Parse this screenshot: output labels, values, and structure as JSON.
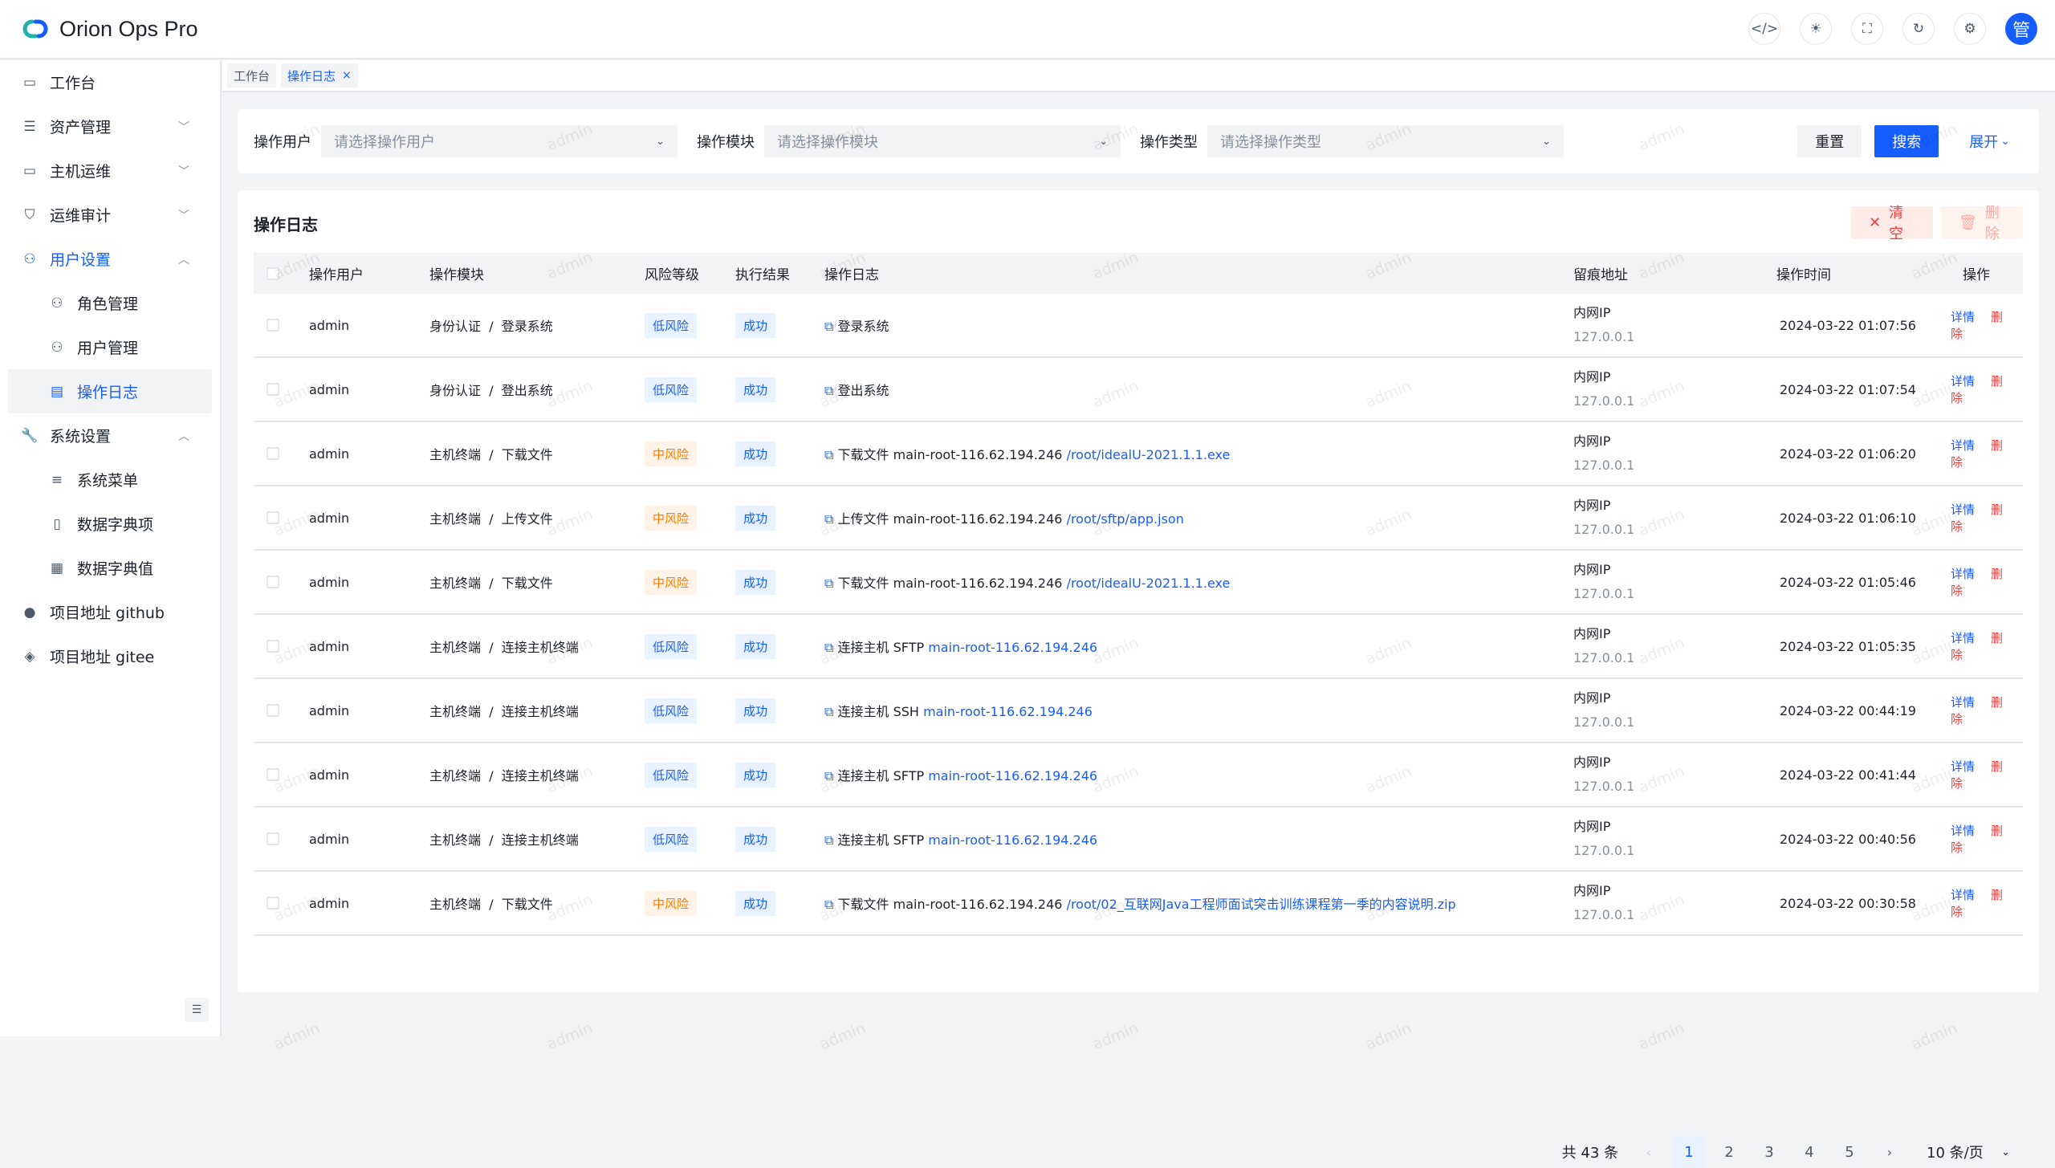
{
  "app": {
    "title": "Orion Ops Pro",
    "avatar_text": "管",
    "brand_color": "#165dff"
  },
  "header": {
    "icons": [
      "code-icon",
      "theme-sun-icon",
      "fullscreen-icon",
      "refresh-icon",
      "settings-gear-icon"
    ]
  },
  "sidebar": {
    "items": [
      {
        "label": "工作台",
        "icon": "monitor-chart-icon",
        "sub": false
      },
      {
        "label": "资产管理",
        "icon": "server-icon",
        "sub": false,
        "chevron": "down"
      },
      {
        "label": "主机运维",
        "icon": "desktop-icon",
        "sub": false,
        "chevron": "down"
      },
      {
        "label": "运维审计",
        "icon": "shield-icon",
        "sub": false,
        "chevron": "down"
      },
      {
        "label": "用户设置",
        "icon": "user-icon",
        "sub": false,
        "chevron": "up",
        "open": true
      },
      {
        "label": "角色管理",
        "icon": "users-icon",
        "sub": true
      },
      {
        "label": "用户管理",
        "icon": "user-add-icon",
        "sub": true
      },
      {
        "label": "操作日志",
        "icon": "log-icon",
        "sub": true,
        "active": true
      },
      {
        "label": "系统设置",
        "icon": "wrench-icon",
        "sub": false,
        "chevron": "up"
      },
      {
        "label": "系统菜单",
        "icon": "menu-icon",
        "sub": true
      },
      {
        "label": "数据字典项",
        "icon": "book-icon",
        "sub": true
      },
      {
        "label": "数据字典值",
        "icon": "table-icon",
        "sub": true
      },
      {
        "label": "项目地址 github",
        "icon": "github-icon",
        "sub": false
      },
      {
        "label": "项目地址 gitee",
        "icon": "gitee-icon",
        "sub": false
      }
    ]
  },
  "tabs": [
    {
      "label": "工作台"
    },
    {
      "label": "操作日志",
      "active": true,
      "close": "×"
    }
  ],
  "search": {
    "fields": [
      {
        "label": "操作用户",
        "placeholder": "请选择操作用户"
      },
      {
        "label": "操作模块",
        "placeholder": "请选择操作模块"
      },
      {
        "label": "操作类型",
        "placeholder": "请选择操作类型"
      }
    ],
    "reset": "重置",
    "search": "搜索",
    "expand": "展开"
  },
  "table": {
    "title": "操作日志",
    "clear": "清空",
    "delete": "删除",
    "columns": [
      "操作用户",
      "操作模块",
      "风险等级",
      "执行结果",
      "操作日志",
      "留痕地址",
      "操作时间",
      "操作"
    ],
    "detail_label": "详情",
    "delete_label": "删除",
    "rows": [
      {
        "user": "admin",
        "module": "身份认证",
        "action": "登录系统",
        "risk": "低风险",
        "risk_level": "low",
        "result": "成功",
        "log": "登录系统",
        "log_link": "",
        "ip_label": "内网IP",
        "ip": "127.0.0.1",
        "time": "2024-03-22 01:07:56"
      },
      {
        "user": "admin",
        "module": "身份认证",
        "action": "登出系统",
        "risk": "低风险",
        "risk_level": "low",
        "result": "成功",
        "log": "登出系统",
        "log_link": "",
        "ip_label": "内网IP",
        "ip": "127.0.0.1",
        "time": "2024-03-22 01:07:54"
      },
      {
        "user": "admin",
        "module": "主机终端",
        "action": "下载文件",
        "risk": "中风险",
        "risk_level": "mid",
        "result": "成功",
        "log": "下载文件 main-root-116.62.194.246",
        "log_link": "/root/idealU-2021.1.1.exe",
        "ip_label": "内网IP",
        "ip": "127.0.0.1",
        "time": "2024-03-22 01:06:20"
      },
      {
        "user": "admin",
        "module": "主机终端",
        "action": "上传文件",
        "risk": "中风险",
        "risk_level": "mid",
        "result": "成功",
        "log": "上传文件 main-root-116.62.194.246",
        "log_link": "/root/sftp/app.json",
        "ip_label": "内网IP",
        "ip": "127.0.0.1",
        "time": "2024-03-22 01:06:10"
      },
      {
        "user": "admin",
        "module": "主机终端",
        "action": "下载文件",
        "risk": "中风险",
        "risk_level": "mid",
        "result": "成功",
        "log": "下载文件 main-root-116.62.194.246",
        "log_link": "/root/idealU-2021.1.1.exe",
        "ip_label": "内网IP",
        "ip": "127.0.0.1",
        "time": "2024-03-22 01:05:46"
      },
      {
        "user": "admin",
        "module": "主机终端",
        "action": "连接主机终端",
        "risk": "低风险",
        "risk_level": "low",
        "result": "成功",
        "log": "连接主机 SFTP",
        "log_link": "main-root-116.62.194.246",
        "ip_label": "内网IP",
        "ip": "127.0.0.1",
        "time": "2024-03-22 01:05:35"
      },
      {
        "user": "admin",
        "module": "主机终端",
        "action": "连接主机终端",
        "risk": "低风险",
        "risk_level": "low",
        "result": "成功",
        "log": "连接主机 SSH",
        "log_link": "main-root-116.62.194.246",
        "ip_label": "内网IP",
        "ip": "127.0.0.1",
        "time": "2024-03-22 00:44:19"
      },
      {
        "user": "admin",
        "module": "主机终端",
        "action": "连接主机终端",
        "risk": "低风险",
        "risk_level": "low",
        "result": "成功",
        "log": "连接主机 SFTP",
        "log_link": "main-root-116.62.194.246",
        "ip_label": "内网IP",
        "ip": "127.0.0.1",
        "time": "2024-03-22 00:41:44"
      },
      {
        "user": "admin",
        "module": "主机终端",
        "action": "连接主机终端",
        "risk": "低风险",
        "risk_level": "low",
        "result": "成功",
        "log": "连接主机 SFTP",
        "log_link": "main-root-116.62.194.246",
        "ip_label": "内网IP",
        "ip": "127.0.0.1",
        "time": "2024-03-22 00:40:56"
      },
      {
        "user": "admin",
        "module": "主机终端",
        "action": "下载文件",
        "risk": "中风险",
        "risk_level": "mid",
        "result": "成功",
        "log": "下载文件 main-root-116.62.194.246",
        "log_link": "/root/02_互联网Java工程师面试突击训练课程第一季的内容说明.zip",
        "ip_label": "内网IP",
        "ip": "127.0.0.1",
        "time": "2024-03-22 00:30:58"
      }
    ]
  },
  "pagination": {
    "total": "共 43 条",
    "pages": [
      "1",
      "2",
      "3",
      "4",
      "5"
    ],
    "current": "1",
    "page_size": "10 条/页"
  },
  "watermark": "admin"
}
